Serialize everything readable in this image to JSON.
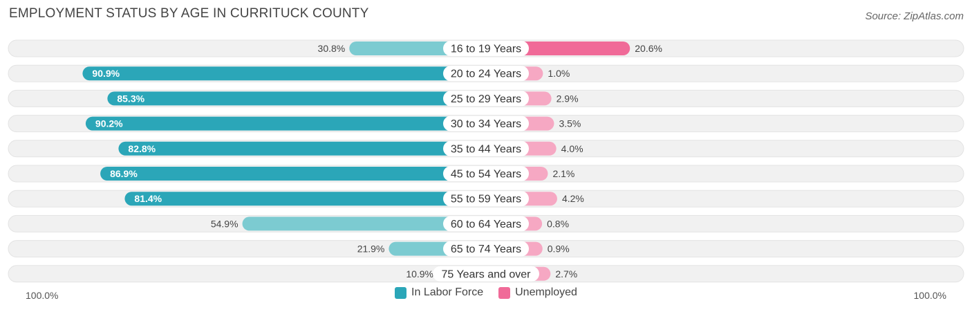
{
  "title": "EMPLOYMENT STATUS BY AGE IN CURRITUCK COUNTY",
  "source": "Source: ZipAtlas.com",
  "colors": {
    "labor_dark": "#2ba6b8",
    "labor_light": "#7ccbd1",
    "unemp_dark": "#f06a98",
    "unemp_light": "#f6a8c3",
    "row_bg": "#f1f1f1",
    "row_border": "#e3e3e3"
  },
  "chart_data": {
    "type": "bar",
    "orientation": "horizontal-diverging",
    "title": "EMPLOYMENT STATUS BY AGE IN CURRITUCK COUNTY",
    "categories": [
      "16 to 19 Years",
      "20 to 24 Years",
      "25 to 29 Years",
      "30 to 34 Years",
      "35 to 44 Years",
      "45 to 54 Years",
      "55 to 59 Years",
      "60 to 64 Years",
      "65 to 74 Years",
      "75 Years and over"
    ],
    "series": [
      {
        "name": "In Labor Force",
        "values": [
          30.8,
          90.9,
          85.3,
          90.2,
          82.8,
          86.9,
          81.4,
          54.9,
          21.9,
          10.9
        ],
        "labels": [
          "30.8%",
          "90.9%",
          "85.3%",
          "90.2%",
          "82.8%",
          "86.9%",
          "81.4%",
          "54.9%",
          "21.9%",
          "10.9%"
        ]
      },
      {
        "name": "Unemployed",
        "values": [
          20.6,
          1.0,
          2.9,
          3.5,
          4.0,
          2.1,
          4.2,
          0.8,
          0.9,
          2.7
        ],
        "labels": [
          "20.6%",
          "1.0%",
          "2.9%",
          "3.5%",
          "4.0%",
          "2.1%",
          "4.2%",
          "0.8%",
          "0.9%",
          "2.7%"
        ]
      }
    ],
    "axis": {
      "left_label": "100.0%",
      "right_label": "100.0%",
      "range": [
        0,
        100
      ]
    },
    "legend": {
      "position": "bottom-center",
      "entries": [
        "In Labor Force",
        "Unemployed"
      ]
    }
  }
}
